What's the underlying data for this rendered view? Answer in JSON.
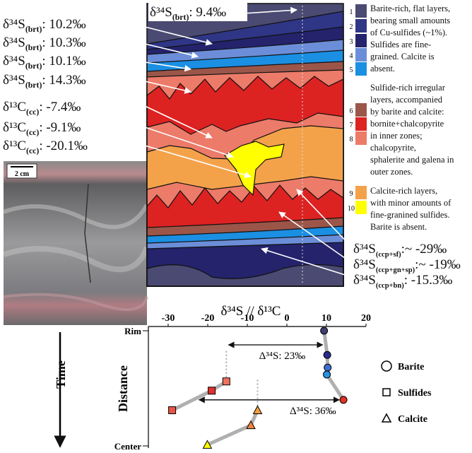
{
  "figure": {
    "scale_bar": "2 cm",
    "layers": [
      {
        "number": "1",
        "color": "#4b4a72"
      },
      {
        "number": "2",
        "color": "#2f3686"
      },
      {
        "number": "3",
        "color": "#24236c"
      },
      {
        "number": "4",
        "color": "#6c8ed8"
      },
      {
        "number": "5",
        "color": "#1b8fe2"
      },
      {
        "number": "6",
        "color": "#9b5649"
      },
      {
        "number": "7",
        "color": "#dd2222"
      },
      {
        "number": "8",
        "color": "#ec7b69"
      },
      {
        "number": "9",
        "color": "#f4a24a"
      },
      {
        "number": "10",
        "color": "#ffff00"
      }
    ],
    "layer_legend": [
      {
        "lines": [
          "Barite-rich, flat layers,",
          "bearing small amounts",
          "of Cu-sulfides (~1%).",
          "Sulfides are fine-",
          "grained. Calcite is",
          "absent."
        ]
      },
      {
        "lines": [
          "Sulfide-rich irregular",
          "layers, accompanied",
          "by barite and calcite:",
          "bornite+chalcopyrite",
          "in inner zones;",
          "chalcopyrite,",
          "sphalerite and galena in",
          "outer zones."
        ]
      },
      {
        "lines": [
          "Calcite-rich layers,",
          "with minor amounts of",
          "fine-granined sulfides.",
          "Barite is absent."
        ]
      }
    ],
    "annotation_top": {
      "isotope": "δ³⁴S",
      "phase": "(brt)",
      "value": ": 9.4‰"
    },
    "annotations_left": [
      {
        "isotope": "δ³⁴S",
        "phase": "(brt)",
        "value": ": 10.2‰"
      },
      {
        "isotope": "δ³⁴S",
        "phase": "(brt)",
        "value": ": 10.3‰"
      },
      {
        "isotope": "δ³⁴S",
        "phase": "(brt)",
        "value": ": 10.1‰"
      },
      {
        "isotope": "δ³⁴S",
        "phase": "(brt)",
        "value": ": 14.3‰"
      },
      {
        "isotope": "δ¹³C",
        "phase": "(cc)",
        "value": ": -7.4‰"
      },
      {
        "isotope": "δ¹³C",
        "phase": "(cc)",
        "value": ": -9.1‰"
      },
      {
        "isotope": "δ¹³C",
        "phase": "(cc)",
        "value": ": -20.1‰"
      }
    ],
    "annotations_right": [
      {
        "isotope": "δ³⁴S",
        "phase": "(ccp+sf)",
        "value": ":~ -29‰"
      },
      {
        "isotope": "δ³⁴S",
        "phase": "(ccp+gn+sp)",
        "value": ":~ -19‰"
      },
      {
        "isotope": "δ³⁴S",
        "phase": "(ccp+bn)",
        "value": ": -15.3‰"
      }
    ]
  },
  "chart_data": {
    "type": "scatter",
    "xlabel": "δ³⁴S // δ¹³C",
    "ylabel": "Distance",
    "time_label": "Time",
    "xlim": [
      -35,
      20
    ],
    "xticks": [
      -30,
      -20,
      -10,
      0,
      10,
      20
    ],
    "ylim": [
      0,
      1
    ],
    "yticks": [
      {
        "value": 0,
        "label": "Rim"
      },
      {
        "value": 1,
        "label": "Center"
      }
    ],
    "series": [
      {
        "name": "Barite",
        "marker": "circle",
        "x": [
          9.4,
          10.2,
          10.3,
          10.1,
          14.3
        ],
        "values": [
          0,
          0.21,
          0.32,
          0.38,
          0.6
        ],
        "colors": [
          "#3f3e70",
          "#2a2c8a",
          "#3b6fd2",
          "#2a92e2",
          "#e03325"
        ]
      },
      {
        "name": "Sulfides",
        "marker": "square",
        "x": [
          -15.3,
          -19,
          -29
        ],
        "values": [
          0.44,
          0.52,
          0.69
        ],
        "colors": [
          "#f07060",
          "#e03030",
          "#e85545"
        ]
      },
      {
        "name": "Calcite",
        "marker": "triangle",
        "x": [
          -7.4,
          -9.1,
          -20.1
        ],
        "values": [
          0.69,
          0.82,
          0.99
        ],
        "colors": [
          "#f4a040",
          "#f08545",
          "#ffff00"
        ]
      }
    ],
    "annotations": [
      "Δ³⁴S: 23‰",
      "Δ³⁴S: 36‰"
    ]
  }
}
